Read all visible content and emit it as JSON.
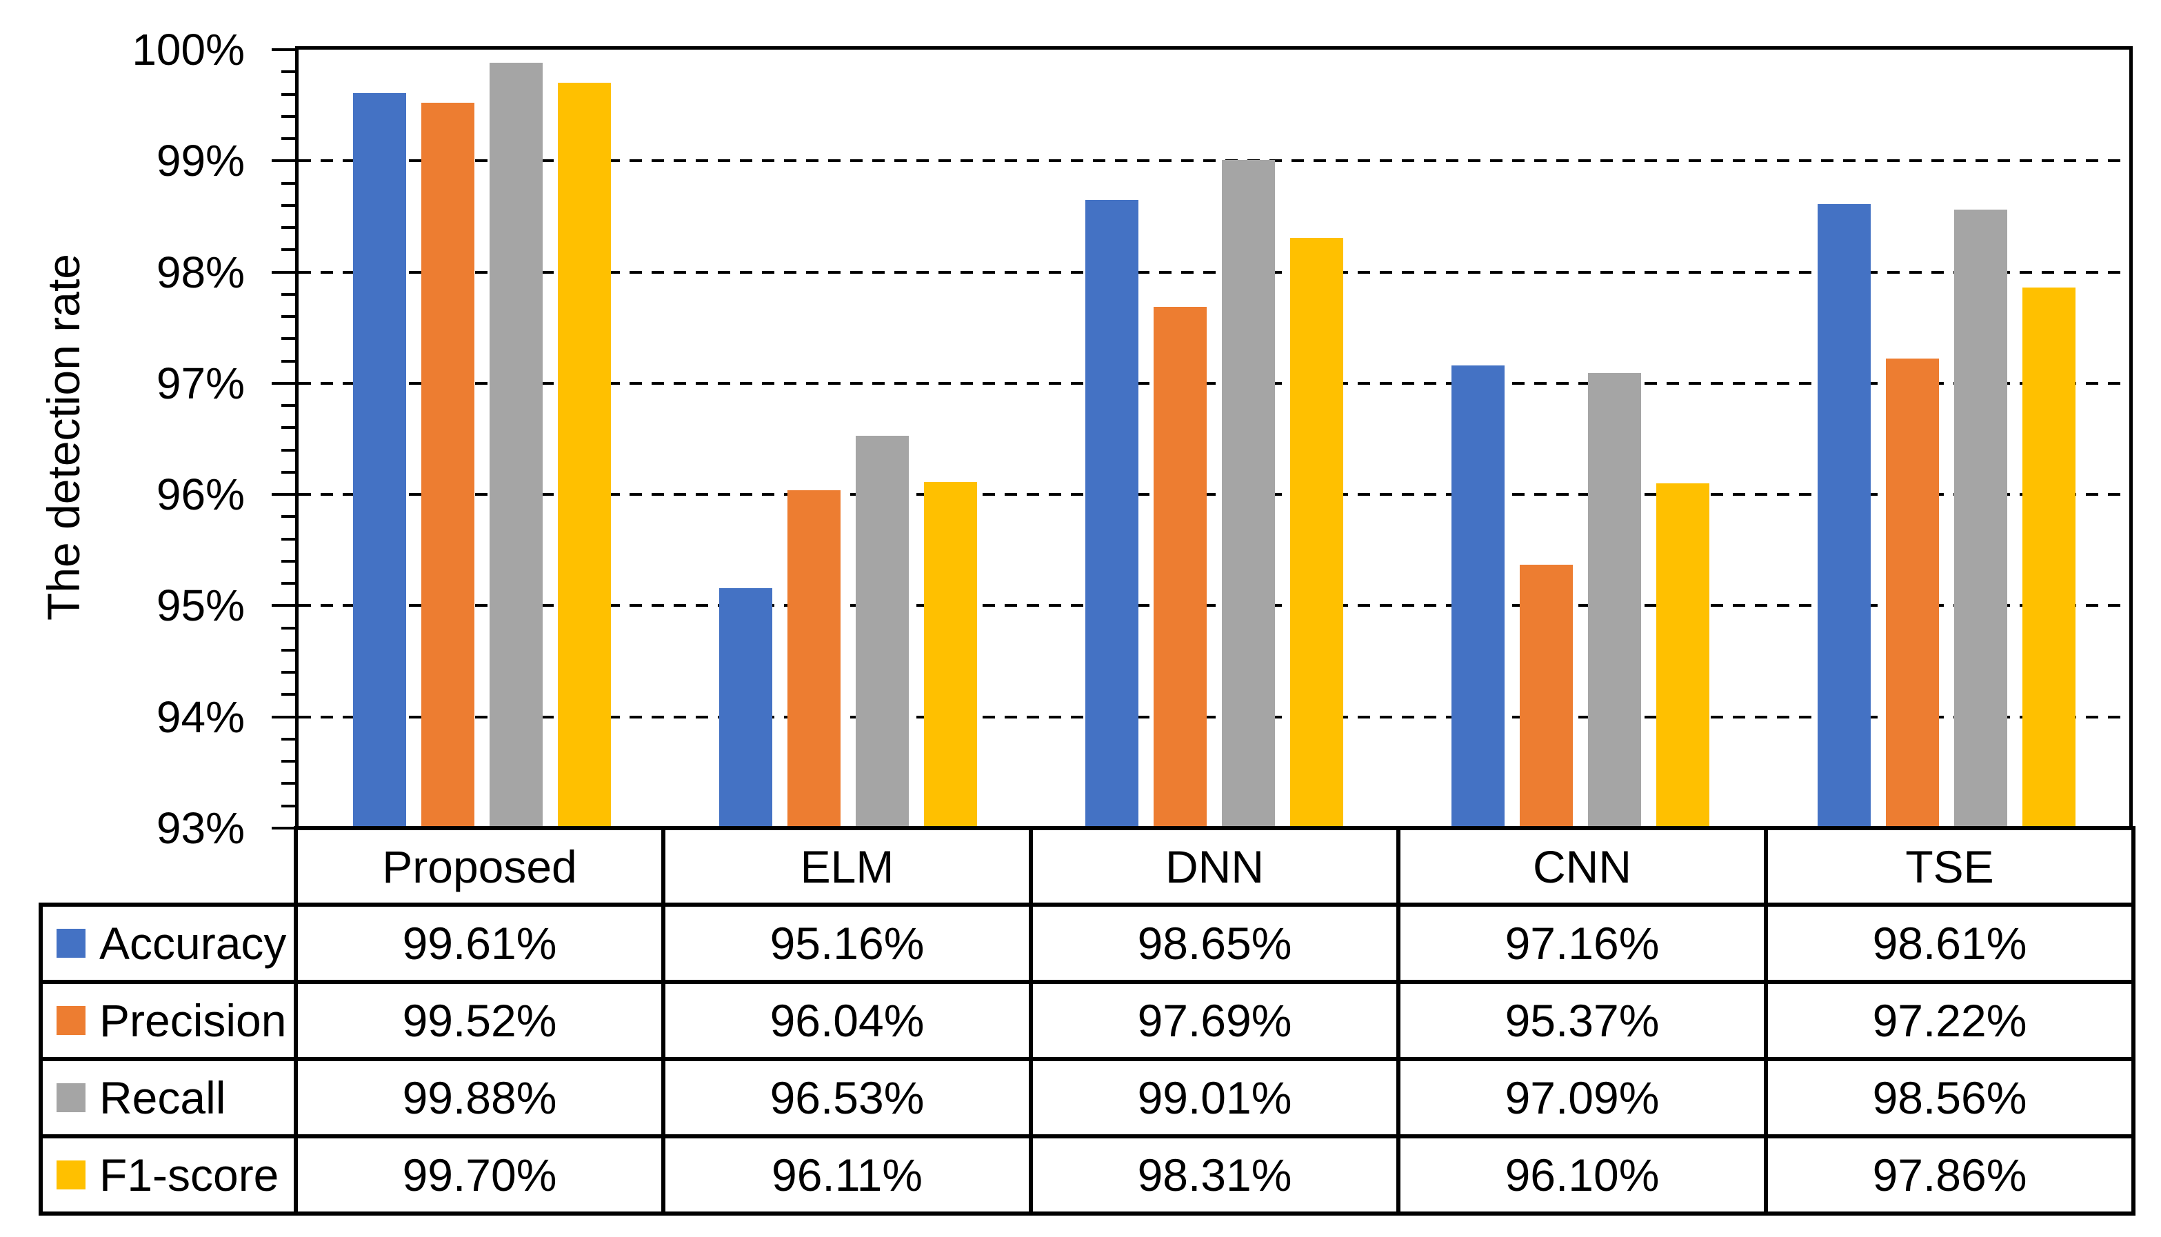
{
  "chart_data": {
    "type": "bar",
    "title": "",
    "ylabel": "The detection rate",
    "xlabel": "",
    "categories": [
      "Proposed",
      "ELM",
      "DNN",
      "CNN",
      "TSE"
    ],
    "series": [
      {
        "name": "Accuracy",
        "color": "#4472C4",
        "values": [
          99.61,
          95.16,
          98.65,
          97.16,
          98.61
        ]
      },
      {
        "name": "Precision",
        "color": "#ED7D31",
        "values": [
          99.52,
          96.04,
          97.69,
          95.37,
          97.22
        ]
      },
      {
        "name": "Recall",
        "color": "#A5A5A5",
        "values": [
          99.88,
          96.53,
          99.01,
          97.09,
          98.56
        ]
      },
      {
        "name": "F1-score",
        "color": "#FFC000",
        "values": [
          99.7,
          96.11,
          98.31,
          96.1,
          97.86
        ]
      }
    ],
    "ylim": [
      93,
      100
    ],
    "y_ticks": [
      "93%",
      "94%",
      "95%",
      "96%",
      "97%",
      "98%",
      "99%",
      "100%"
    ],
    "y_major_step": 1,
    "y_minor_step": 0.2,
    "value_decimals": 2,
    "value_suffix": "%",
    "grid": "dashed-horizontal-majors",
    "gridline_color": "#000000",
    "axis_color": "#000000",
    "plot_bg": "#FFFFFF",
    "legend_position": "table-rows-left"
  }
}
